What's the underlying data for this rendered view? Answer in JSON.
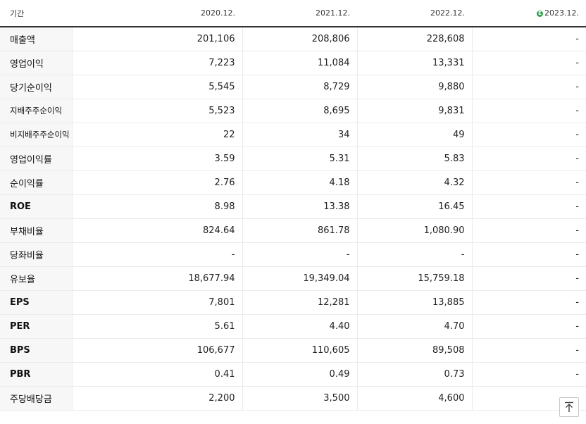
{
  "header": {
    "label": "기간",
    "periods": [
      "2020.12.",
      "2021.12.",
      "2022.12.",
      "2023.12."
    ],
    "estimate_badge": "E",
    "estimate_color": "#2ea24a"
  },
  "rows": [
    {
      "label": "매출액",
      "values": [
        "201,106",
        "208,806",
        "228,608",
        "-"
      ]
    },
    {
      "label": "영업이익",
      "values": [
        "7,223",
        "11,084",
        "13,331",
        "-"
      ]
    },
    {
      "label": "당기순이익",
      "values": [
        "5,545",
        "8,729",
        "9,880",
        "-"
      ]
    },
    {
      "label": "지배주주순이익",
      "values": [
        "5,523",
        "8,695",
        "9,831",
        "-"
      ]
    },
    {
      "label": "비지배주주순이익",
      "values": [
        "22",
        "34",
        "49",
        "-"
      ]
    },
    {
      "label": "영업이익률",
      "values": [
        "3.59",
        "5.31",
        "5.83",
        "-"
      ]
    },
    {
      "label": "순이익률",
      "values": [
        "2.76",
        "4.18",
        "4.32",
        "-"
      ]
    },
    {
      "label": "ROE",
      "values": [
        "8.98",
        "13.38",
        "16.45",
        "-"
      ]
    },
    {
      "label": "부채비율",
      "values": [
        "824.64",
        "861.78",
        "1,080.90",
        "-"
      ]
    },
    {
      "label": "당좌비율",
      "values": [
        "-",
        "-",
        "-",
        "-"
      ]
    },
    {
      "label": "유보율",
      "values": [
        "18,677.94",
        "19,349.04",
        "15,759.18",
        "-"
      ]
    },
    {
      "label": "EPS",
      "values": [
        "7,801",
        "12,281",
        "13,885",
        "-"
      ]
    },
    {
      "label": "PER",
      "values": [
        "5.61",
        "4.40",
        "4.70",
        "-"
      ]
    },
    {
      "label": "BPS",
      "values": [
        "106,677",
        "110,605",
        "89,508",
        "-"
      ]
    },
    {
      "label": "PBR",
      "values": [
        "0.41",
        "0.49",
        "0.73",
        "-"
      ]
    },
    {
      "label": "주당배당금",
      "values": [
        "2,200",
        "3,500",
        "4,600",
        "-"
      ]
    }
  ],
  "scroll_top_icon": "arrow-up-icon"
}
